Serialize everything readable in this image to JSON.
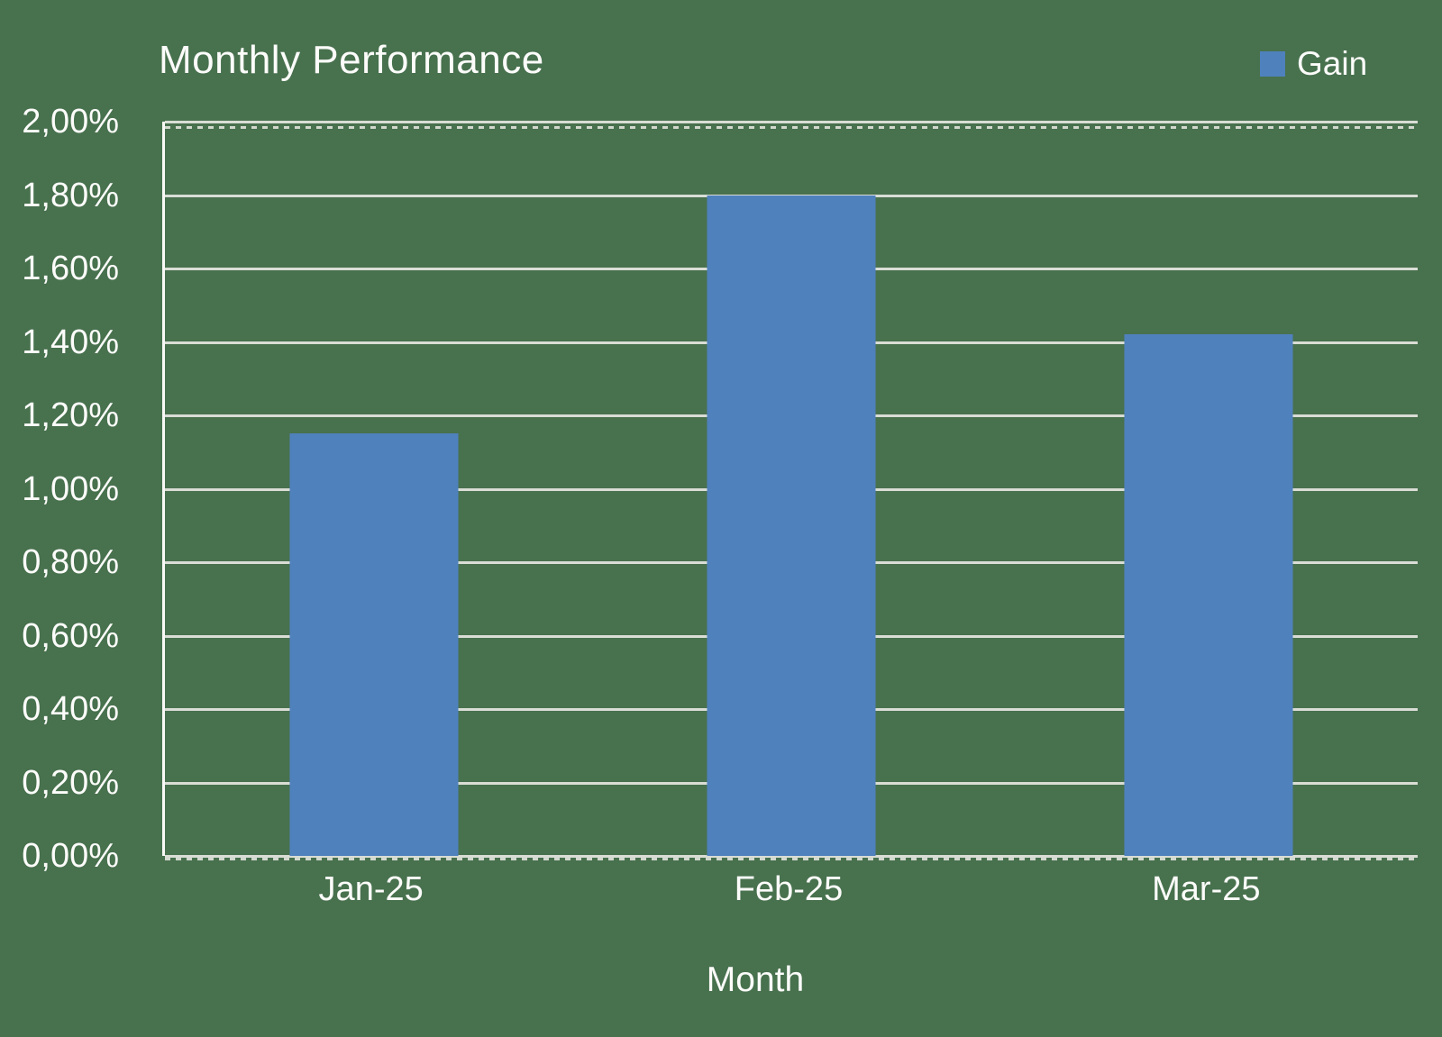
{
  "title": "Monthly Performance",
  "legend": {
    "label": "Gain"
  },
  "axis": {
    "x_title": "Month"
  },
  "colors": {
    "background": "#48714E",
    "bar": "#4F81BD",
    "grid": "#D9DDD5",
    "axis_line": "#F8F9F6",
    "text": "#FCFCFA"
  },
  "chart_data": {
    "type": "bar",
    "title": "Monthly Performance",
    "categories": [
      "Jan-25",
      "Feb-25",
      "Mar-25"
    ],
    "series": [
      {
        "name": "Gain",
        "values": [
          1.15,
          1.8,
          1.42
        ]
      }
    ],
    "xlabel": "Month",
    "ylabel": "",
    "ylim": [
      0,
      2.0
    ],
    "ytick_step": 0.2,
    "ytick_labels_top_to_bottom": [
      "2,00%",
      "1,80%",
      "1,60%",
      "1,40%",
      "1,20%",
      "1,00%",
      "0,80%",
      "0,60%",
      "0,40%",
      "0,20%",
      "0,00%"
    ],
    "grid": "horizontal-solid-with-dashed-edge-lines",
    "legend_position": "top-right",
    "value_format": "percent-comma-2dp"
  }
}
